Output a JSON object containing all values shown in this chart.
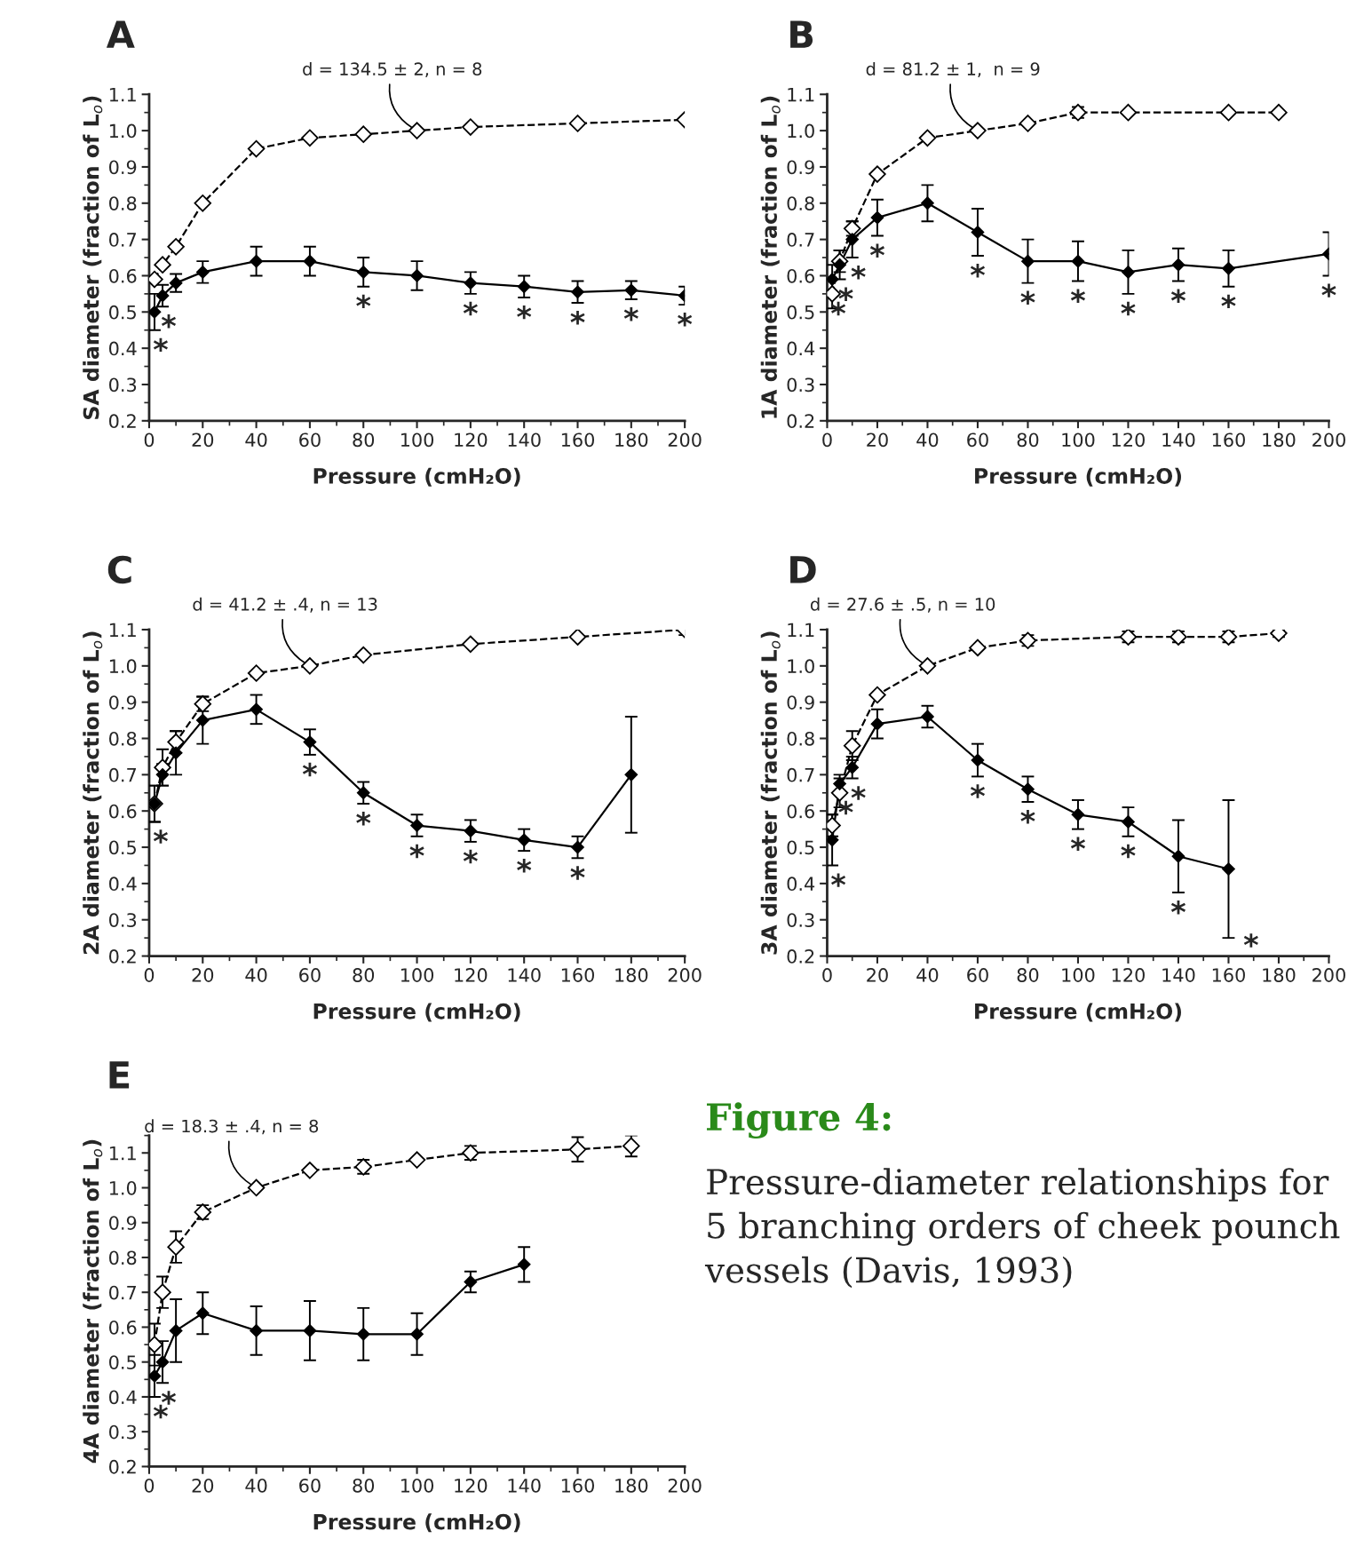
{
  "chart_data": [
    {
      "type": "line",
      "title": "A",
      "xlabel": "Pressure (cmH₂O)",
      "ylabel": "SA diameter (fraction of L$_{o}$)",
      "xlim": [
        0,
        200
      ],
      "ylim": [
        0.2,
        1.1
      ],
      "xticks": [
        0,
        20,
        40,
        60,
        80,
        100,
        120,
        140,
        160,
        180,
        200
      ],
      "yticks": [
        {
          "value": 0.2,
          "label": "0.2"
        },
        {
          "value": 0.3,
          "label": "0.3"
        },
        {
          "value": 0.4,
          "label": "0.4"
        },
        {
          "value": 0.5,
          "label": "0.5"
        },
        {
          "value": 0.6,
          "label": "0.6"
        },
        {
          "value": 0.7,
          "label": "0.7"
        },
        {
          "value": 0.8,
          "label": "0.8"
        },
        {
          "value": 0.9,
          "label": "0.9"
        },
        {
          "value": 1.0,
          "label": "1.0"
        },
        {
          "value": 1.1,
          "label": "1.1"
        }
      ],
      "series": [
        {
          "color": "#000000",
          "marker": "diamond",
          "line_style": "dashed",
          "x": [
            2,
            5,
            10,
            20,
            40,
            60,
            80,
            100,
            120,
            160,
            200
          ],
          "values": [
            0.59,
            0.63,
            0.68,
            0.8,
            0.95,
            0.98,
            0.99,
            1.0,
            1.01,
            1.02,
            1.03
          ]
        },
        {
          "color": "#000000",
          "marker": "diamond",
          "line_style": "solid",
          "x": [
            2,
            5,
            10,
            20,
            40,
            60,
            80,
            100,
            120,
            140,
            160,
            180,
            200
          ],
          "values": [
            0.5,
            0.545,
            0.58,
            0.61,
            0.64,
            0.64,
            0.61,
            0.6,
            0.58,
            0.57,
            0.555,
            0.56,
            0.545
          ],
          "value_labels": [
            "*",
            "*",
            null,
            null,
            null,
            null,
            "*",
            null,
            "*",
            "*",
            "*",
            "*",
            "*"
          ],
          "errors": [
            0.05,
            0.03,
            0.025,
            0.03,
            0.04,
            0.04,
            0.04,
            0.04,
            0.03,
            0.03,
            0.03,
            0.025,
            0.025
          ]
        }
      ],
      "annotations": [
        {
          "text": "d = 134.5 ± 2, n = 8",
          "x": 100,
          "y": 1.0
        }
      ]
    },
    {
      "type": "line",
      "title": "B",
      "xlabel": "Pressure (cmH₂O)",
      "ylabel": "1A diameter (fraction of L$_{o}$)",
      "xlim": [
        0,
        200
      ],
      "ylim": [
        0.2,
        1.1
      ],
      "xticks": [
        0,
        20,
        40,
        60,
        80,
        100,
        120,
        140,
        160,
        180,
        200
      ],
      "yticks": [
        {
          "value": 0.2,
          "label": "0.2"
        },
        {
          "value": 0.3,
          "label": "0.3"
        },
        {
          "value": 0.4,
          "label": "0.4"
        },
        {
          "value": 0.5,
          "label": "0.5"
        },
        {
          "value": 0.6,
          "label": "0.6"
        },
        {
          "value": 0.7,
          "label": "0.7"
        },
        {
          "value": 0.8,
          "label": "0.8"
        },
        {
          "value": 0.9,
          "label": "0.9"
        },
        {
          "value": 1.0,
          "label": "1.0"
        },
        {
          "value": 1.1,
          "label": "1.1"
        }
      ],
      "series": [
        {
          "color": "#000000",
          "marker": "diamond",
          "line_style": "dashed",
          "x": [
            2,
            5,
            10,
            20,
            40,
            60,
            80,
            100,
            120,
            160,
            180
          ],
          "values": [
            0.55,
            0.64,
            0.73,
            0.88,
            0.98,
            1.0,
            1.02,
            1.05,
            1.05,
            1.05,
            1.05
          ],
          "errors": [
            0.04,
            0.03,
            0.02,
            null,
            null,
            null,
            null,
            0.015,
            null,
            null,
            null
          ]
        },
        {
          "color": "#000000",
          "marker": "diamond",
          "line_style": "solid",
          "x": [
            2,
            5,
            10,
            20,
            40,
            60,
            80,
            100,
            120,
            140,
            160,
            200
          ],
          "values": [
            0.59,
            0.63,
            0.7,
            0.76,
            0.8,
            0.72,
            0.64,
            0.64,
            0.61,
            0.63,
            0.62,
            0.66
          ],
          "value_labels": [
            "*",
            "*",
            "*",
            "*",
            null,
            "*",
            "*",
            "*",
            "*",
            "*",
            "*",
            "*"
          ],
          "errors": [
            0.04,
            0.04,
            0.05,
            0.05,
            0.05,
            0.065,
            0.06,
            0.055,
            0.06,
            0.045,
            0.05,
            0.06
          ]
        }
      ],
      "annotations": [
        {
          "text": "d = 81.2 ± 1,  n = 9",
          "x": 60,
          "y": 1.0
        }
      ]
    },
    {
      "type": "line",
      "title": "C",
      "xlabel": "Pressure (cmH₂O)",
      "ylabel": "2A diameter (fraction of L$_{o}$)",
      "xlim": [
        0,
        200
      ],
      "ylim": [
        0.2,
        1.1
      ],
      "xticks": [
        0,
        20,
        40,
        60,
        80,
        100,
        120,
        140,
        160,
        180,
        200
      ],
      "yticks": [
        {
          "value": 0.2,
          "label": "0.2"
        },
        {
          "value": 0.3,
          "label": "0.3"
        },
        {
          "value": 0.4,
          "label": "0.4"
        },
        {
          "value": 0.5,
          "label": "0.5"
        },
        {
          "value": 0.6,
          "label": "0.6"
        },
        {
          "value": 0.7,
          "label": "0.7"
        },
        {
          "value": 0.8,
          "label": "0.8"
        },
        {
          "value": 0.9,
          "label": "0.9"
        },
        {
          "value": 1.0,
          "label": "1.0"
        },
        {
          "value": 1.1,
          "label": "1.1"
        }
      ],
      "series": [
        {
          "color": "#000000",
          "marker": "diamond",
          "line_style": "dashed",
          "x": [
            2,
            5,
            10,
            20,
            40,
            60,
            80,
            120,
            160,
            200
          ],
          "values": [
            0.62,
            0.72,
            0.79,
            0.895,
            0.98,
            1.0,
            1.03,
            1.06,
            1.08,
            1.1
          ],
          "errors": [
            0.05,
            0.05,
            0.03,
            0.02,
            null,
            null,
            null,
            null,
            null,
            0.015
          ]
        },
        {
          "color": "#000000",
          "marker": "diamond",
          "line_style": "solid",
          "x": [
            2,
            5,
            10,
            20,
            40,
            60,
            80,
            100,
            120,
            140,
            160,
            180
          ],
          "values": [
            0.62,
            0.7,
            0.76,
            0.85,
            0.88,
            0.79,
            0.65,
            0.56,
            0.545,
            0.52,
            0.5,
            0.7
          ],
          "value_labels": [
            "*",
            null,
            null,
            null,
            null,
            "*",
            "*",
            "*",
            "*",
            "*",
            "*",
            null
          ],
          "errors": [
            0.05,
            0.03,
            0.06,
            0.065,
            0.04,
            0.035,
            0.03,
            0.03,
            0.03,
            0.03,
            0.03,
            0.16
          ]
        }
      ],
      "annotations": [
        {
          "text": "d = 41.2 ± .4, n = 13",
          "x": 60,
          "y": 1.0
        }
      ]
    },
    {
      "type": "line",
      "title": "D",
      "xlabel": "Pressure (cmH₂O)",
      "ylabel": "3A diameter (fraction of L$_{o}$)",
      "xlim": [
        0,
        200
      ],
      "ylim": [
        0.2,
        1.1
      ],
      "xticks": [
        0,
        20,
        40,
        60,
        80,
        100,
        120,
        140,
        160,
        180,
        200
      ],
      "yticks": [
        {
          "value": 0.2,
          "label": "0.2"
        },
        {
          "value": 0.3,
          "label": "0.3"
        },
        {
          "value": 0.4,
          "label": "0.4"
        },
        {
          "value": 0.5,
          "label": "0.5"
        },
        {
          "value": 0.6,
          "label": "0.6"
        },
        {
          "value": 0.7,
          "label": "0.7"
        },
        {
          "value": 0.8,
          "label": "0.8"
        },
        {
          "value": 0.9,
          "label": "0.9"
        },
        {
          "value": 1.0,
          "label": "1.0"
        },
        {
          "value": 1.1,
          "label": "1.1"
        }
      ],
      "series": [
        {
          "color": "#000000",
          "marker": "diamond",
          "line_style": "dashed",
          "x": [
            2,
            5,
            10,
            20,
            40,
            60,
            80,
            120,
            140,
            160,
            180
          ],
          "values": [
            0.56,
            0.65,
            0.78,
            0.92,
            1.0,
            1.05,
            1.07,
            1.08,
            1.08,
            1.08,
            1.09
          ],
          "errors": [
            0.03,
            0.04,
            0.04,
            null,
            null,
            null,
            0.015,
            0.015,
            0.015,
            0.015,
            0.01
          ]
        },
        {
          "color": "#000000",
          "marker": "diamond",
          "line_style": "solid",
          "x": [
            2,
            5,
            10,
            20,
            40,
            60,
            80,
            100,
            120,
            140,
            160
          ],
          "values": [
            0.52,
            0.675,
            0.72,
            0.84,
            0.86,
            0.74,
            0.66,
            0.59,
            0.57,
            0.475,
            0.44
          ],
          "value_labels": [
            "*",
            "*",
            "*",
            null,
            null,
            "*",
            "*",
            "*",
            "*",
            "*",
            "*"
          ],
          "errors": [
            0.07,
            0.025,
            0.03,
            0.04,
            0.03,
            0.045,
            0.035,
            0.04,
            0.04,
            0.1,
            0.19
          ]
        }
      ],
      "annotations": [
        {
          "text": "d = 27.6 ± .5, n = 10",
          "x": 40,
          "y": 1.0
        }
      ]
    },
    {
      "type": "line",
      "title": "E",
      "xlabel": "Pressure (cmH₂O)",
      "ylabel": "4A diameter (fraction of L$_{o}$)",
      "xlim": [
        0,
        200
      ],
      "ylim": [
        0.2,
        1.15
      ],
      "xticks": [
        0,
        20,
        40,
        60,
        80,
        100,
        120,
        140,
        160,
        180,
        200
      ],
      "yticks": [
        {
          "value": 0.2,
          "label": "0.2"
        },
        {
          "value": 0.3,
          "label": "0.3"
        },
        {
          "value": 0.4,
          "label": "0.4"
        },
        {
          "value": 0.5,
          "label": "0.5"
        },
        {
          "value": 0.6,
          "label": "0.6"
        },
        {
          "value": 0.7,
          "label": "0.7"
        },
        {
          "value": 0.8,
          "label": "0.8"
        },
        {
          "value": 0.9,
          "label": "0.9"
        },
        {
          "value": 1.0,
          "label": "1.0"
        },
        {
          "value": 1.1,
          "label": "1.1"
        }
      ],
      "series": [
        {
          "color": "#000000",
          "marker": "diamond",
          "line_style": "dashed",
          "x": [
            2,
            5,
            10,
            20,
            40,
            60,
            80,
            100,
            120,
            160,
            180
          ],
          "values": [
            0.55,
            0.7,
            0.83,
            0.93,
            1.0,
            1.05,
            1.06,
            1.08,
            1.1,
            1.11,
            1.12
          ],
          "errors": [
            0.06,
            0.045,
            0.045,
            0.02,
            null,
            null,
            0.02,
            null,
            0.02,
            0.035,
            0.03
          ]
        },
        {
          "color": "#000000",
          "marker": "diamond",
          "line_style": "solid",
          "x": [
            2,
            5,
            10,
            20,
            40,
            60,
            80,
            100,
            120,
            140
          ],
          "values": [
            0.46,
            0.5,
            0.59,
            0.64,
            0.59,
            0.59,
            0.58,
            0.58,
            0.73,
            0.78
          ],
          "value_labels": [
            "*",
            "*",
            null,
            null,
            null,
            null,
            null,
            null,
            null,
            null
          ],
          "errors": [
            0.06,
            0.06,
            0.09,
            0.06,
            0.07,
            0.085,
            0.075,
            0.06,
            0.03,
            0.05
          ]
        }
      ],
      "annotations": [
        {
          "text": "d = 18.3 ± .4, n = 8",
          "x": 40,
          "y": 1.0
        }
      ]
    },
    {
      "type": "other",
      "title": "Figure 4:",
      "annotations": [
        "Pressure-diameter relationships for 5 branching orders of cheek pounch vessels (Davis, 1993)"
      ]
    }
  ]
}
